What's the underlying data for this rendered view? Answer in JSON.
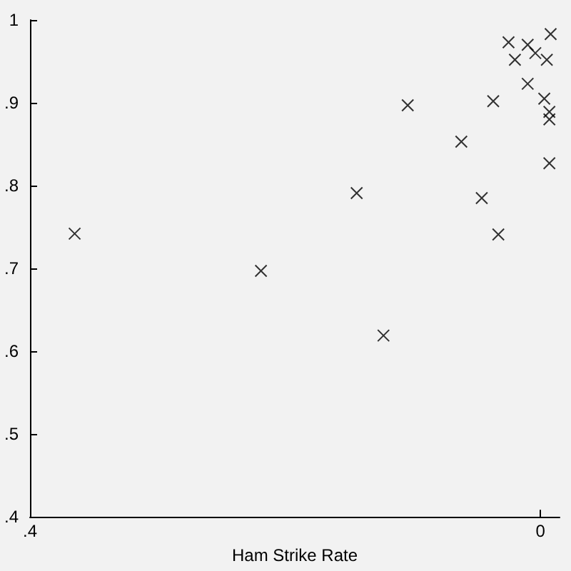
{
  "chart_data": {
    "type": "scatter",
    "xlabel": "Ham Strike Rate",
    "xlim": [
      0.4,
      -0.015
    ],
    "xticks": [
      {
        "value": 0.4,
        "label": ".4"
      },
      0
    ],
    "ylim": [
      0.4,
      1
    ],
    "yticks": [
      {
        "value": 0.4,
        "label": ".4"
      },
      {
        "value": 0.5,
        "label": ".5"
      },
      {
        "value": 0.6,
        "label": ".6"
      },
      {
        "value": 0.7,
        "label": ".7"
      },
      {
        "value": 0.8,
        "label": ".8"
      },
      {
        "value": 0.9,
        "label": ".9"
      },
      1
    ],
    "marker": "cross",
    "grid": false,
    "series": [
      {
        "color": "#000000",
        "x": [
          0.365,
          0.219,
          0.144,
          0.104,
          0.123,
          0.062,
          0.037,
          0.046,
          0.033,
          0.025,
          0.01,
          -0.008,
          0.02,
          0.004,
          -0.005,
          0.01,
          -0.003,
          -0.007,
          -0.007,
          -0.007
        ],
        "values": [
          0.742,
          0.697,
          0.791,
          0.897,
          0.619,
          0.853,
          0.902,
          0.785,
          0.741,
          0.973,
          0.97,
          0.983,
          0.952,
          0.96,
          0.952,
          0.923,
          0.905,
          0.889,
          0.88,
          0.827
        ]
      }
    ]
  }
}
